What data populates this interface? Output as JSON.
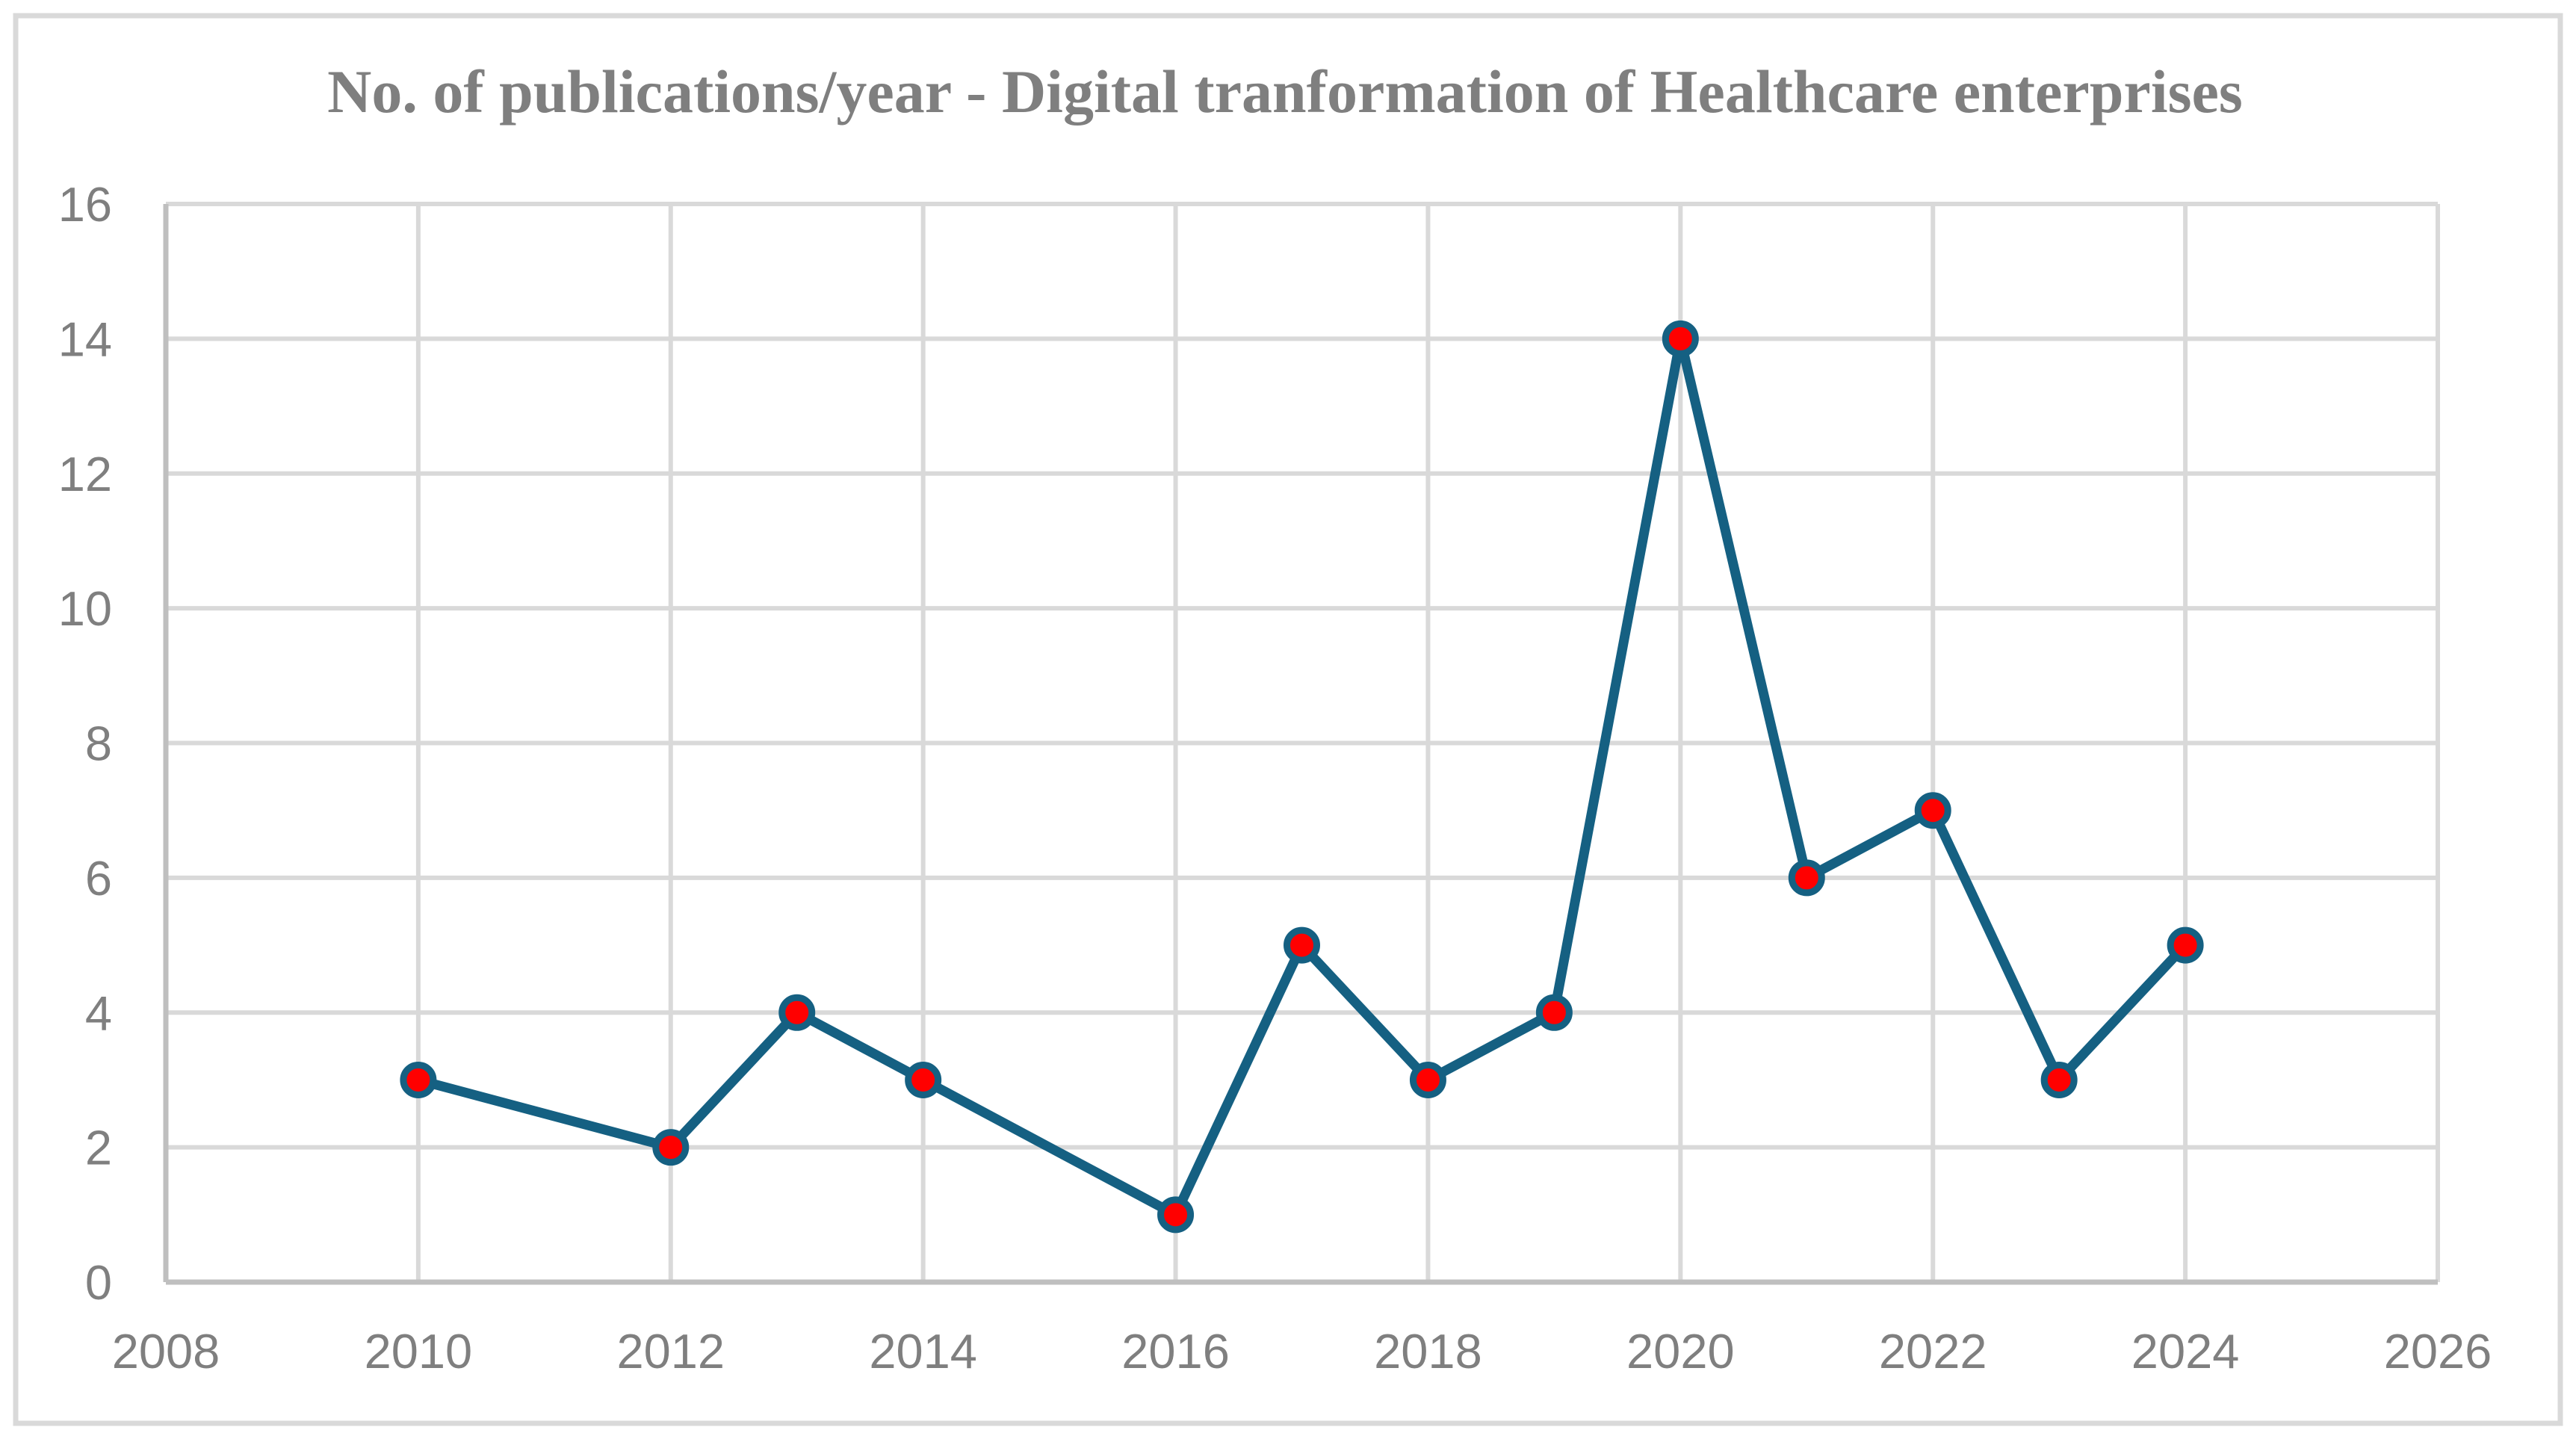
{
  "chart_data": {
    "type": "line",
    "title": "No. of publications/year - Digital tranformation of Healthcare enterprises",
    "xlabel": "",
    "ylabel": "",
    "xlim": [
      2008,
      2026
    ],
    "ylim": [
      0,
      16
    ],
    "x_ticks": [
      "2008",
      "2010",
      "2012",
      "2014",
      "2016",
      "2018",
      "2020",
      "2022",
      "2024",
      "2026"
    ],
    "y_ticks": [
      "0",
      "2",
      "4",
      "6",
      "8",
      "10",
      "12",
      "14",
      "16"
    ],
    "grid": true,
    "legend_position": "none",
    "series": [
      {
        "x": [
          2010,
          2012,
          2013,
          2014,
          2016,
          2017,
          2018,
          2019,
          2020,
          2021,
          2022,
          2023,
          2024
        ],
        "values": [
          3,
          2,
          4,
          3,
          1,
          5,
          3,
          4,
          14,
          6,
          7,
          3,
          5
        ]
      }
    ],
    "colors": {
      "line": "#156082",
      "marker_fill": "#FF0000",
      "marker_outline": "#156082",
      "gridline": "#D9D9D9",
      "axis_line": "#BFBFBF",
      "tick_label": "#7F7F7F",
      "title": "#7F7F7F",
      "figure_border": "#D9D9D9",
      "background": "#FFFFFF"
    }
  }
}
